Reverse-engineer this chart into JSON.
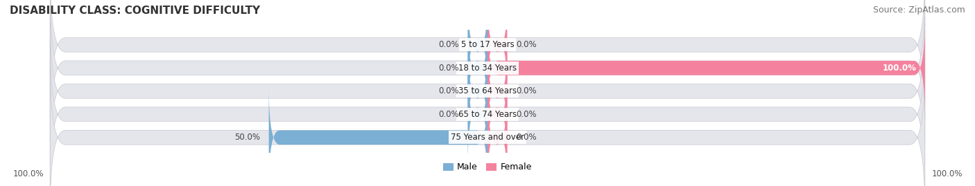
{
  "title": "DISABILITY CLASS: COGNITIVE DIFFICULTY",
  "source": "Source: ZipAtlas.com",
  "categories": [
    "5 to 17 Years",
    "18 to 34 Years",
    "35 to 64 Years",
    "65 to 74 Years",
    "75 Years and over"
  ],
  "male_values": [
    0.0,
    0.0,
    0.0,
    0.0,
    50.0
  ],
  "female_values": [
    0.0,
    100.0,
    0.0,
    0.0,
    0.0
  ],
  "male_color": "#7bafd4",
  "female_color": "#f4829e",
  "bar_bg_color": "#e5e5ec",
  "bar_height": 0.62,
  "max_val": 100,
  "title_fontsize": 11,
  "source_fontsize": 9,
  "label_fontsize": 8.5,
  "tick_fontsize": 8.5,
  "legend_fontsize": 9,
  "axis_label_left": "100.0%",
  "axis_label_right": "100.0%",
  "stub_size": 4.5
}
